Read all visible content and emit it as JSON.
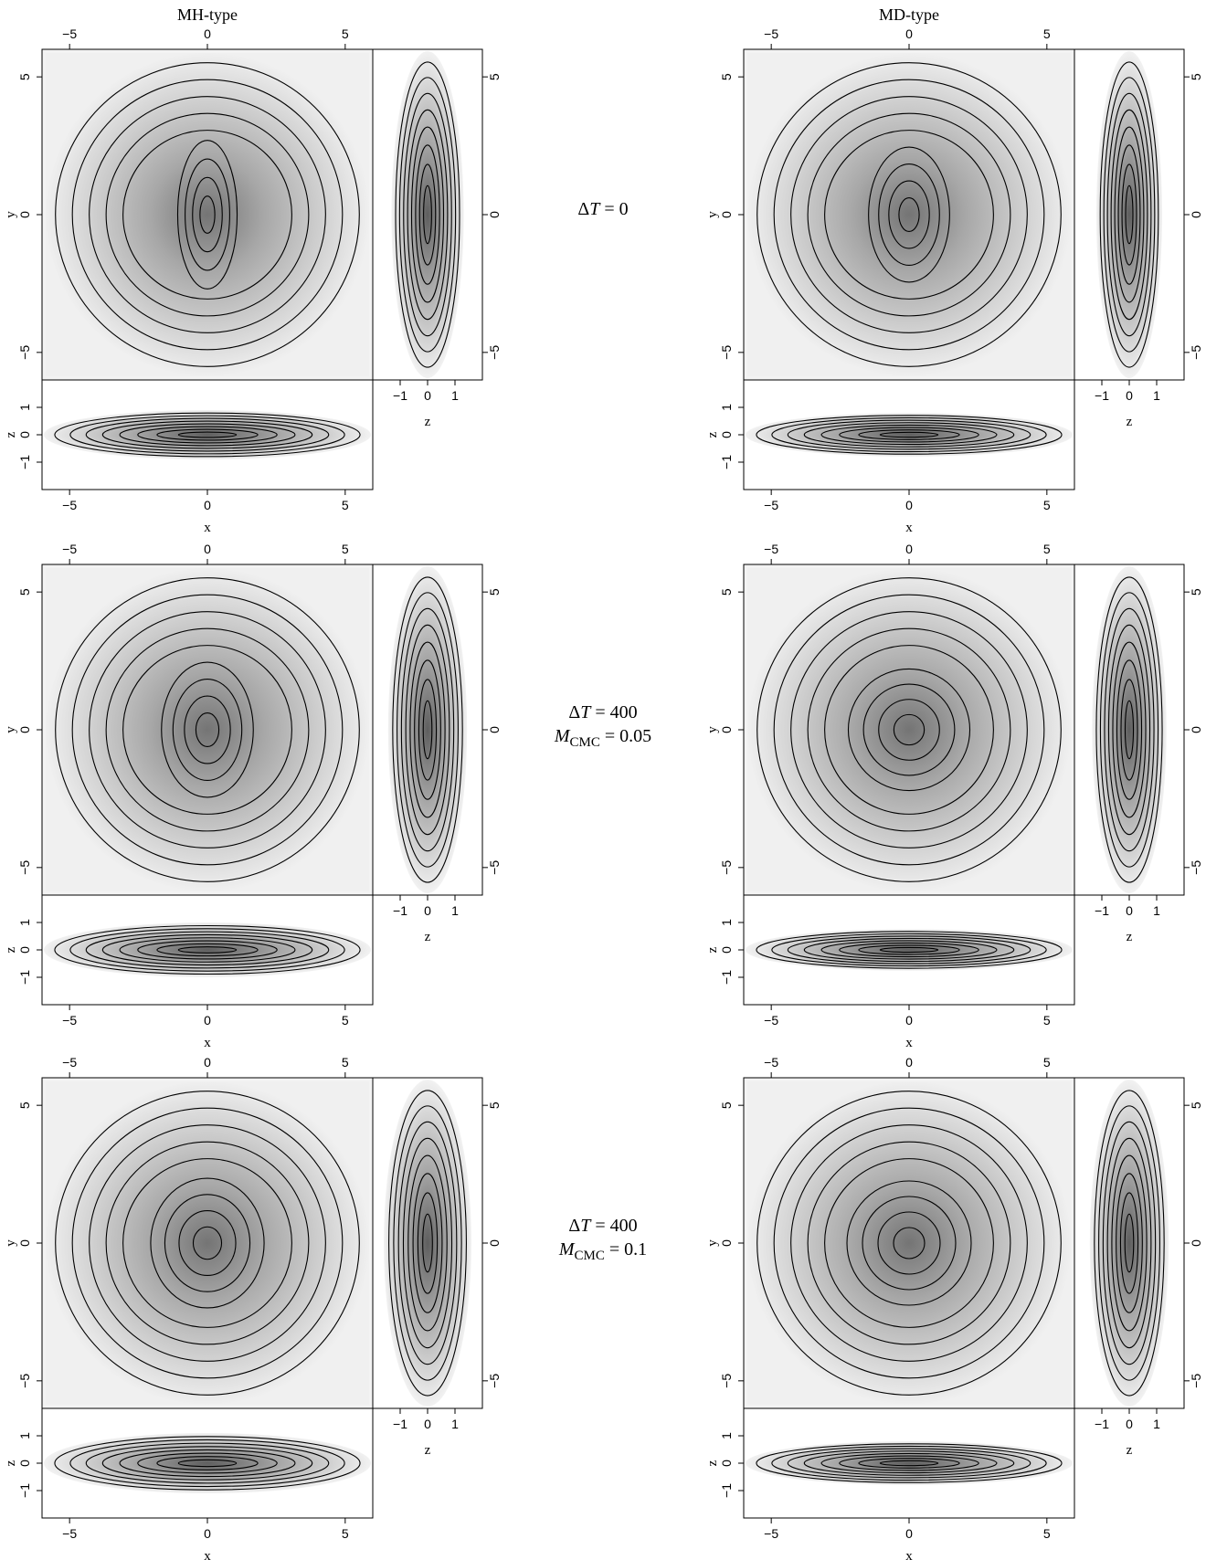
{
  "figure": {
    "columns": [
      {
        "title": "MH-type"
      },
      {
        "title": "MD-type"
      }
    ],
    "rows": [
      {
        "annotation": [
          {
            "sym": "Δ",
            "var": "T",
            "rest": " = 0"
          }
        ]
      },
      {
        "annotation": [
          {
            "sym": "Δ",
            "var": "T",
            "rest": " = 400"
          },
          {
            "var": "M",
            "sub": "CMC",
            "rest": " = 0.05"
          }
        ]
      },
      {
        "annotation": [
          {
            "sym": "Δ",
            "var": "T",
            "rest": " = 400"
          },
          {
            "var": "M",
            "sub": "CMC",
            "rest": " = 0.1"
          }
        ]
      }
    ],
    "axes": {
      "x_label": "x",
      "y_label": "y",
      "z_label": "z",
      "xy_ticks": [
        "−5",
        "0",
        "5"
      ],
      "xy_tick_values": [
        -5,
        0,
        5
      ],
      "z_ticks": [
        "−1",
        "0",
        "1"
      ],
      "z_tick_values": [
        -1,
        0,
        1
      ],
      "xy_range": [
        -6,
        6
      ],
      "z_range": [
        -2,
        2
      ]
    },
    "colors": {
      "background": "#ffffff",
      "ink": "#000000",
      "density_min": "#f4f4f4",
      "density_max": "#6a6a6a"
    }
  }
}
